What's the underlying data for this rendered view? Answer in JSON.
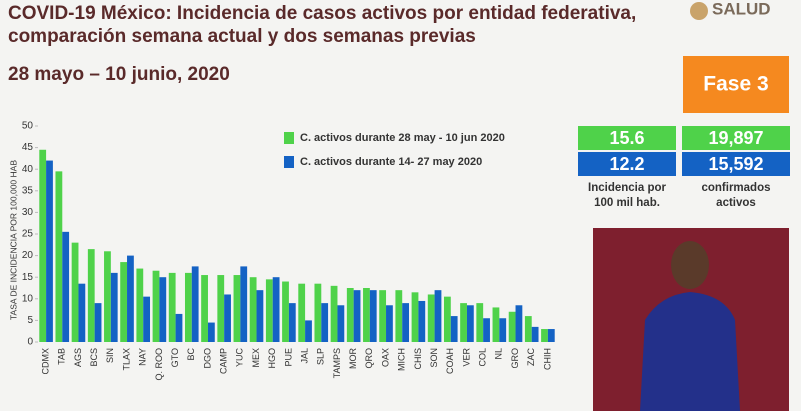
{
  "header": {
    "logo": "SALUD"
  },
  "phase": "Fase 3",
  "stats": {
    "rows": [
      [
        "15.6",
        "19,897"
      ],
      [
        "12.2",
        "15,592"
      ]
    ],
    "labels": [
      [
        "Incidencia por",
        "100 mil hab."
      ],
      [
        "confirmados",
        "activos"
      ]
    ]
  },
  "chart_data": {
    "type": "bar",
    "title": [
      "COVID-19 México: Incidencia de casos activos por entidad federativa,",
      "comparación semana actual y dos semanas previas"
    ],
    "subtitle": "28 mayo – 10 junio, 2020",
    "y_label": "TASA DE INCIDENCIA POR 100,000 HAB",
    "categories": [
      "CDMX",
      "TAB",
      "AGS",
      "BCS",
      "SIN",
      "TLAX",
      "NAY",
      "Q. ROO",
      "GTO",
      "BC",
      "DGO",
      "CAMP",
      "YUC",
      "MEX",
      "HGO",
      "PUE",
      "JAL",
      "SLP",
      "TAMPS",
      "MOR",
      "QRO",
      "OAX",
      "MICH",
      "CHIS",
      "SON",
      "COAH",
      "VER",
      "COL",
      "NL",
      "GRO",
      "ZAC",
      "CHIH"
    ],
    "series": [
      {
        "name": "C. activos durante 28 may - 10 jun 2020",
        "color": "#4fd24a",
        "values": [
          44.5,
          39.5,
          23,
          21.5,
          21,
          18.5,
          17,
          16.5,
          16,
          16,
          15.5,
          15.5,
          15.5,
          15,
          14.5,
          14,
          13.5,
          13.5,
          13,
          12.5,
          12.5,
          12,
          12,
          11.5,
          11,
          10.5,
          9,
          9,
          8,
          7,
          6,
          3
        ]
      },
      {
        "name": "C. activos durante 14- 27 may 2020",
        "color": "#1462c4",
        "values": [
          42,
          25.5,
          13.5,
          9,
          16,
          20,
          10.5,
          15,
          6.5,
          17.5,
          4.5,
          11,
          17.5,
          12,
          15,
          9,
          5,
          9,
          8.5,
          12,
          12,
          8.5,
          9,
          9.5,
          12,
          6,
          8.5,
          5.5,
          5.5,
          8.5,
          3.5,
          3
        ]
      }
    ],
    "ylim": [
      0,
      50
    ],
    "yticks": [
      0,
      5,
      10,
      15,
      20,
      25,
      30,
      35,
      40,
      45,
      50
    ],
    "grid": false
  }
}
